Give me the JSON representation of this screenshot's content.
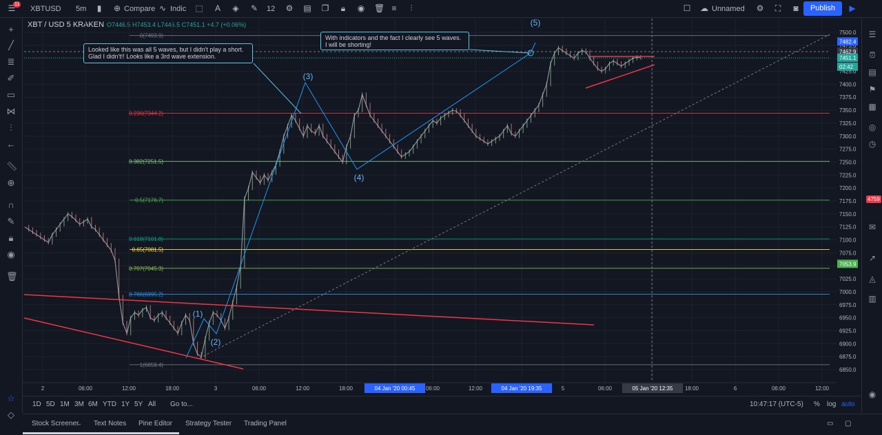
{
  "toolbar": {
    "symbol": "XBTUSD",
    "interval": "5m",
    "compare_label": "Compare",
    "indicators_label": "Indic",
    "brush_size": "12",
    "layout_name": "Unnamed",
    "publish_label": "Publish",
    "notification_count": "11",
    "icons": [
      "menu-icon",
      "candles-icon",
      "plus-icon",
      "indicator-icon",
      "shape-icon",
      "text-color-icon",
      "fill-icon",
      "line-color-icon",
      "settings-icon",
      "template-icon",
      "clone-icon",
      "lock-icon",
      "eye-icon",
      "trash-icon",
      "align-icon",
      "chart-icon"
    ]
  },
  "legend": {
    "title": "XBT / USD  5  KRAKEN",
    "ohlc": "O7446.5  H7453.4  L7446.5  C7451.1  +4.7 (+0.06%)"
  },
  "annotations": {
    "note1": [
      "Looked like this was all 5 waves, but I didn't play a short.",
      "Glad I didn't!! Looks like a 3rd wave extension."
    ],
    "note2": [
      "With indicators and the fact I clearly see 5 waves.",
      "I will be shorting!"
    ],
    "waves": [
      "(1)",
      "(2)",
      "(3)",
      "(4)",
      "(5)"
    ]
  },
  "chart_data": {
    "type": "line",
    "title": "XBT / USD  5  KRAKEN",
    "ylim": [
      6825,
      7525
    ],
    "y_ticks": [
      6850,
      6875,
      6900,
      6925,
      6950,
      6975,
      7000,
      7025,
      7050,
      7075,
      7100,
      7125,
      7150,
      7175,
      7200,
      7225,
      7250,
      7275,
      7300,
      7325,
      7350,
      7375,
      7400,
      7425,
      7450,
      7475,
      7500
    ],
    "x_ticks": [
      "2",
      "06:00",
      "12:00",
      "18:00",
      "3",
      "06:00",
      "12:00",
      "18:00",
      "04 Jan '20  00:45",
      "06:00",
      "12:00",
      "04 Jan '20  19:35",
      "5",
      "06:00",
      "05 Jan '20  12:35",
      "18:00",
      "6",
      "06:00",
      "12:00"
    ],
    "fib_levels": [
      {
        "label": "0(7493.9)",
        "value": 7493.9,
        "color": "#787b86"
      },
      {
        "label": "0.236(7344.2)",
        "value": 7344.2,
        "color": "#f23645"
      },
      {
        "label": "0.382(7251.5)",
        "value": 7251.5,
        "color": "#81c784"
      },
      {
        "label": "0.5(7176.7)",
        "value": 7176.7,
        "color": "#4caf50"
      },
      {
        "label": "0.618(7101.8)",
        "value": 7101.8,
        "color": "#089981"
      },
      {
        "label": "0.65(7081.5)",
        "value": 7081.5,
        "color": "#ffeb3b"
      },
      {
        "label": "0.707(7045.3)",
        "value": 7045.3,
        "color": "#8bc34a"
      },
      {
        "label": "0.786(6995.2)",
        "value": 6995.2,
        "color": "#2196f3"
      },
      {
        "label": "1(6859.4)",
        "value": 6859.4,
        "color": "#787b86"
      }
    ],
    "price_labels": [
      {
        "text": "7482.4",
        "value": 7482.4,
        "color": "#2962ff"
      },
      {
        "text": "7462.9",
        "value": 7462.9,
        "color": "#363a45"
      },
      {
        "text": "7451.1",
        "value": 7451.1,
        "color": "#26a69a"
      },
      {
        "text": "02:42",
        "value": 7435,
        "color": "#26a69a"
      },
      {
        "text": "7053.9",
        "value": 7053.9,
        "color": "#4caf50"
      }
    ],
    "series": [
      {
        "values": [
          7125,
          7120,
          7115,
          7110,
          7105,
          7100,
          7095,
          7110,
          7120,
          7130,
          7140,
          7150,
          7145,
          7138,
          7130,
          7135,
          7140,
          7125,
          7120,
          7110,
          7100,
          7090,
          7080,
          7060,
          6990,
          6940,
          6920,
          6950,
          6960,
          6955,
          6965,
          6970,
          6950,
          6945,
          6955,
          6960,
          6950,
          6940,
          6930,
          6920,
          6940,
          6955,
          6945,
          6900,
          6880,
          6875,
          6910,
          6940,
          6960,
          6955,
          6945,
          6930,
          6950,
          6980,
          7010,
          7050,
          7180,
          7200,
          7230,
          7220,
          7210,
          7225,
          7215,
          7230,
          7245,
          7270,
          7300,
          7320,
          7340,
          7330,
          7315,
          7300,
          7320,
          7310,
          7305,
          7320,
          7300,
          7290,
          7280,
          7270,
          7260,
          7250,
          7280,
          7300,
          7340,
          7350,
          7380,
          7360,
          7340,
          7330,
          7320,
          7310,
          7300,
          7290,
          7280,
          7270,
          7260,
          7265,
          7270,
          7280,
          7290,
          7300,
          7310,
          7320,
          7330,
          7325,
          7335,
          7340,
          7345,
          7350,
          7348,
          7340,
          7330,
          7320,
          7310,
          7300,
          7295,
          7290,
          7285,
          7290,
          7295,
          7300,
          7310,
          7320,
          7305,
          7300,
          7310,
          7320,
          7330,
          7340,
          7350,
          7360,
          7380,
          7400,
          7440,
          7460,
          7470,
          7465,
          7460,
          7455,
          7450,
          7460,
          7465,
          7462,
          7450,
          7440,
          7430,
          7425,
          7430,
          7440,
          7445,
          7440,
          7435,
          7440,
          7445,
          7450,
          7452,
          7451
        ]
      }
    ]
  },
  "bottom": {
    "ranges": [
      "1D",
      "5D",
      "1M",
      "3M",
      "6M",
      "YTD",
      "1Y",
      "5Y",
      "All"
    ],
    "goto": "Go to...",
    "clock": "10:47:17 (UTC-5)",
    "percent": "%",
    "log": "log",
    "auto": "auto"
  },
  "panels": [
    "Stock Screener",
    "Text Notes",
    "Pine Editor",
    "Strategy Tester",
    "Trading Panel"
  ],
  "right_badge": "4759"
}
